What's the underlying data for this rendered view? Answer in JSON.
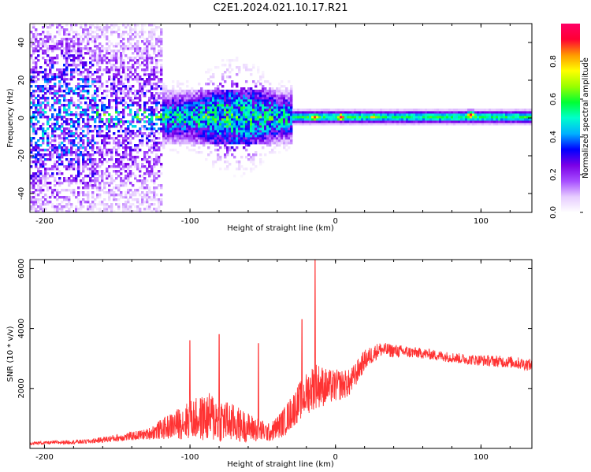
{
  "chart_data": [
    {
      "type": "heatmap",
      "title": "C2E1.2024.021.10.17.R21",
      "xlabel": "Height of straight line (km)",
      "ylabel": "Frequency (Hz)",
      "xlim": [
        -210,
        135
      ],
      "ylim": [
        -50,
        50
      ],
      "x_ticks": [
        -200,
        -100,
        0,
        100
      ],
      "y_ticks": [
        -40,
        -20,
        0,
        20,
        40
      ],
      "colorbar": {
        "label": "Normalized spectral amplitude",
        "range": [
          0,
          1
        ],
        "ticks": [
          "0.0",
          "0.2",
          "0.4",
          "0.6",
          "0.8"
        ],
        "colors": [
          "#ffffff",
          "#e6ccff",
          "#a64dff",
          "#7a00e6",
          "#0000ff",
          "#00b0ff",
          "#00ffcc",
          "#00ff33",
          "#99ff00",
          "#ffff00",
          "#ff9900",
          "#ff0033",
          "#ff0066"
        ]
      },
      "bands": [
        {
          "x": [
            -210,
            -165
          ],
          "spread": 50,
          "level": 0.25
        },
        {
          "x": [
            -165,
            -120
          ],
          "spread": 50,
          "level": 0.18
        },
        {
          "x": [
            -165,
            -120
          ],
          "spread": 10,
          "level": 0.35
        },
        {
          "x": [
            -120,
            -30
          ],
          "spread": 12,
          "level": 0.4
        },
        {
          "x": [
            -30,
            135
          ],
          "spread": 3,
          "level": 0.55
        }
      ],
      "hotspots": [
        {
          "x": 3,
          "y": 0,
          "level": 0.95
        },
        {
          "x": 92,
          "y": 1,
          "level": 0.95
        },
        {
          "x": -15,
          "y": 0,
          "level": 0.9
        },
        {
          "x": 25,
          "y": 0,
          "level": 0.8
        }
      ]
    },
    {
      "type": "line",
      "xlabel": "Height of straight line (km)",
      "ylabel": "SNR (10 * v/v)",
      "xlim": [
        -210,
        135
      ],
      "ylim": [
        0,
        6300
      ],
      "x_ticks": [
        -200,
        -100,
        0,
        100
      ],
      "y_ticks": [
        2000,
        4000,
        6000
      ],
      "color": "#ff3333",
      "envelope": [
        {
          "x": -210,
          "base": 150,
          "amp": 100
        },
        {
          "x": -170,
          "base": 200,
          "amp": 150
        },
        {
          "x": -150,
          "base": 300,
          "amp": 250
        },
        {
          "x": -130,
          "base": 400,
          "amp": 350
        },
        {
          "x": -100,
          "base": 700,
          "amp": 1300
        },
        {
          "x": -85,
          "base": 700,
          "amp": 1700
        },
        {
          "x": -60,
          "base": 500,
          "amp": 1000
        },
        {
          "x": -45,
          "base": 400,
          "amp": 600
        },
        {
          "x": -35,
          "base": 700,
          "amp": 1000
        },
        {
          "x": -25,
          "base": 1300,
          "amp": 1300
        },
        {
          "x": -14,
          "base": 1800,
          "amp": 1600
        },
        {
          "x": -5,
          "base": 1800,
          "amp": 1200
        },
        {
          "x": 10,
          "base": 2000,
          "amp": 900
        },
        {
          "x": 20,
          "base": 2800,
          "amp": 700
        },
        {
          "x": 30,
          "base": 3200,
          "amp": 500
        },
        {
          "x": 60,
          "base": 3100,
          "amp": 350
        },
        {
          "x": 90,
          "base": 2900,
          "amp": 350
        },
        {
          "x": 120,
          "base": 2800,
          "amp": 400
        },
        {
          "x": 135,
          "base": 2700,
          "amp": 400
        }
      ],
      "spikes": [
        {
          "x": -14,
          "y": 6300
        },
        {
          "x": -23,
          "y": 4300
        },
        {
          "x": -100,
          "y": 3600
        },
        {
          "x": -80,
          "y": 3800
        },
        {
          "x": -53,
          "y": 3500
        }
      ]
    }
  ]
}
